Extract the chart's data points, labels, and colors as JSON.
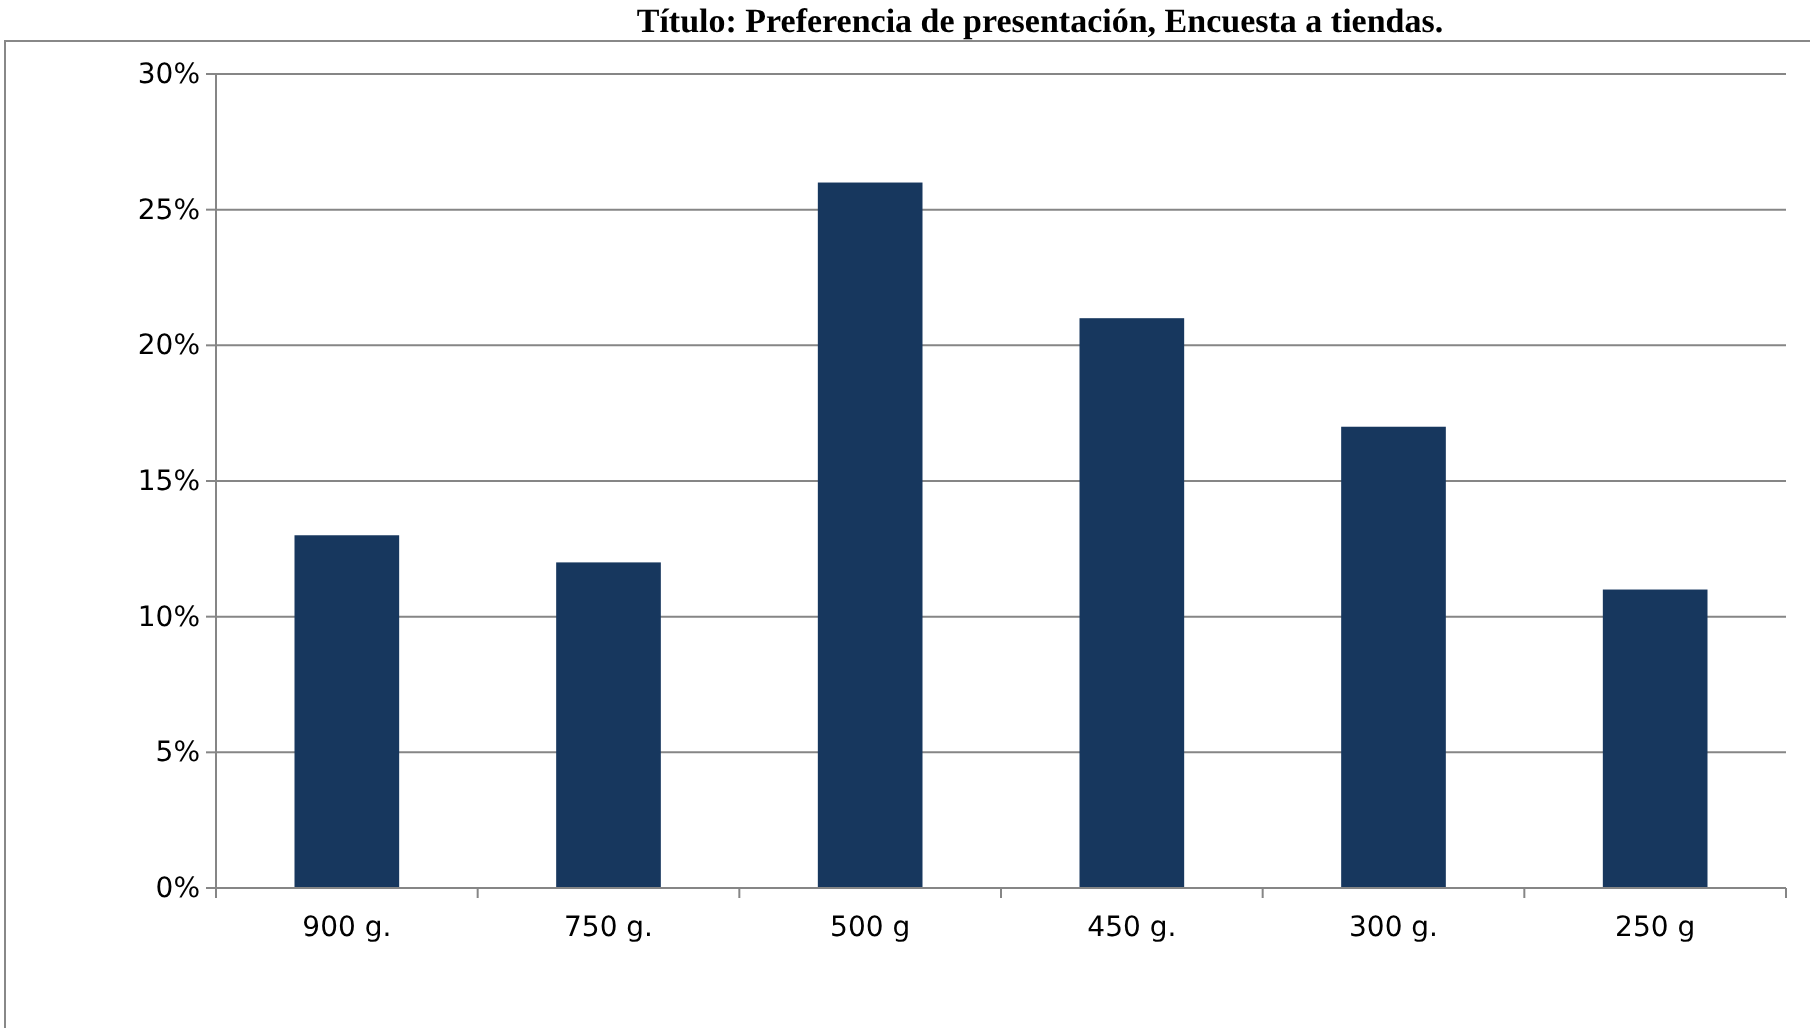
{
  "chart_data": {
    "type": "bar",
    "title": "Título: Preferencia de presentación, Encuesta a tiendas.",
    "categories": [
      "900 g.",
      "750 g.",
      "500 g",
      "450 g.",
      "300 g.",
      "250 g"
    ],
    "values": [
      13,
      12,
      26,
      21,
      17,
      11
    ],
    "color": "#17375e",
    "ylim": [
      0,
      30
    ],
    "yticks": [
      {
        "value": 0,
        "label": "0%"
      },
      {
        "value": 5,
        "label": "5%"
      },
      {
        "value": 10,
        "label": "10%"
      },
      {
        "value": 15,
        "label": "15%"
      },
      {
        "value": 20,
        "label": "20%"
      },
      {
        "value": 25,
        "label": "25%"
      },
      {
        "value": 30,
        "label": "30%"
      }
    ],
    "grid": "y"
  }
}
